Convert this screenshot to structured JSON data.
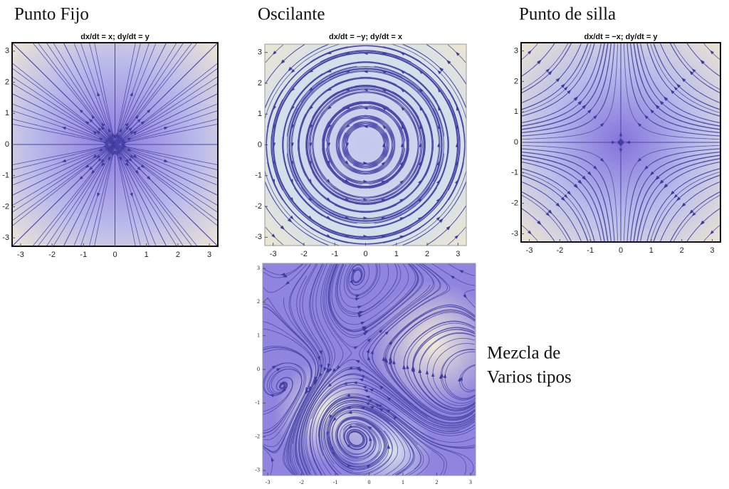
{
  "chart_data": [
    {
      "type": "streamplot",
      "title": "Punto Fijo",
      "subtitle": "dx/dt = x; dy/dt = y",
      "xlim": [
        -3.27,
        3.27
      ],
      "ylim": [
        -3.27,
        3.27
      ],
      "xticks": [
        -3,
        -2,
        -1,
        0,
        1,
        2,
        3
      ],
      "yticks": [
        -3,
        -2,
        -1,
        0,
        1,
        2,
        3
      ]
    },
    {
      "type": "streamplot",
      "title": "Oscilante",
      "subtitle": "dx/dt = −y; dy/dt = x",
      "xlim": [
        -3.27,
        3.27
      ],
      "ylim": [
        -3.27,
        3.27
      ],
      "xticks": [
        -3,
        -2,
        -1,
        0,
        1,
        2,
        3
      ],
      "yticks": [
        -3,
        -2,
        -1,
        0,
        1,
        2,
        3
      ]
    },
    {
      "type": "streamplot",
      "title": "Punto de silla",
      "subtitle": "dx/dt = −x; dy/dt = y",
      "xlim": [
        -3.27,
        3.27
      ],
      "ylim": [
        -3.27,
        3.27
      ],
      "xticks": [
        -3,
        -2,
        -1,
        0,
        1,
        2,
        3
      ],
      "yticks": [
        -3,
        -2,
        -1,
        0,
        1,
        2,
        3
      ]
    },
    {
      "type": "streamplot",
      "annotation": [
        "Mezcla de",
        "Varios tipos"
      ],
      "xlim": [
        -3.15,
        3.15
      ],
      "ylim": [
        -3.15,
        3.15
      ],
      "xticks": [
        -3,
        -2,
        -1,
        0,
        1,
        2,
        3
      ],
      "yticks": [
        -3,
        -2,
        -1,
        0,
        1,
        2,
        3
      ]
    }
  ]
}
